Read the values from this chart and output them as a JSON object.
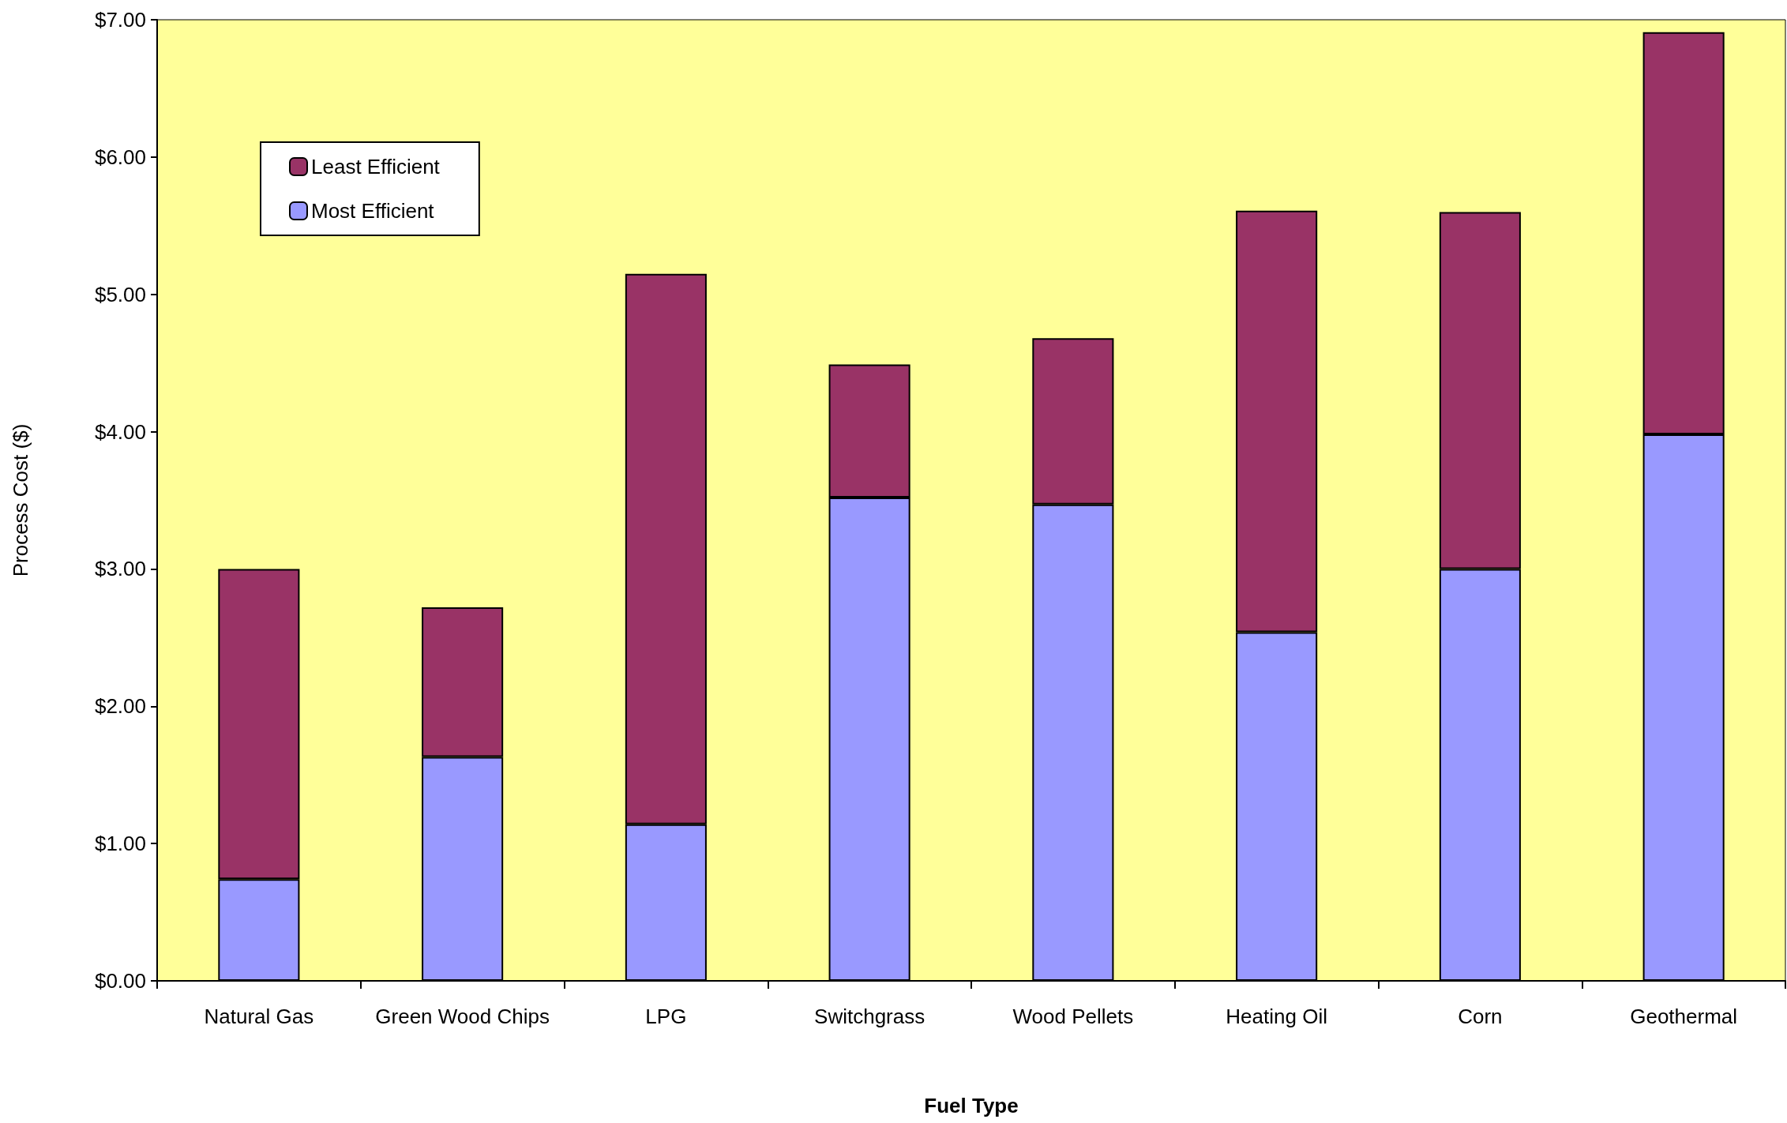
{
  "chart_data": {
    "type": "bar",
    "stacked": true,
    "xlabel": "Fuel Type",
    "ylabel": "Process Cost ($)",
    "categories": [
      "Natural Gas",
      "Green Wood Chips",
      "LPG",
      "Switchgrass",
      "Wood Pellets",
      "Heating Oil",
      "Corn",
      "Geothermal"
    ],
    "series": [
      {
        "name": "Most Efficient",
        "color": "#9999ff",
        "values": [
          0.74,
          1.63,
          1.14,
          3.52,
          3.47,
          2.54,
          3.0,
          3.98
        ]
      },
      {
        "name": "Least Efficient",
        "color": "#993366",
        "values": [
          2.26,
          1.09,
          4.01,
          0.97,
          1.21,
          3.07,
          2.6,
          2.93
        ]
      }
    ],
    "ylim": [
      0,
      7
    ],
    "yticks": [
      {
        "value": 0,
        "label": "$0.00"
      },
      {
        "value": 1,
        "label": "$1.00"
      },
      {
        "value": 2,
        "label": "$2.00"
      },
      {
        "value": 3,
        "label": "$3.00"
      },
      {
        "value": 4,
        "label": "$4.00"
      },
      {
        "value": 5,
        "label": "$5.00"
      },
      {
        "value": 6,
        "label": "$6.00"
      },
      {
        "value": 7,
        "label": "$7.00"
      }
    ],
    "grid": false,
    "legend": "top left"
  }
}
